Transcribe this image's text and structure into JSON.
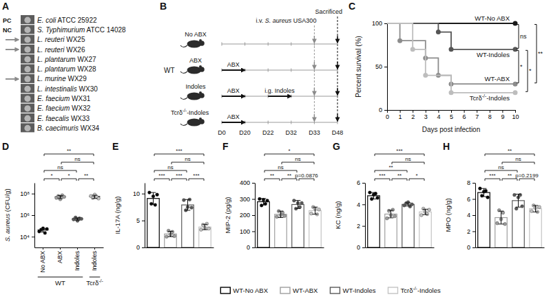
{
  "panel_a": {
    "panel_label": "A",
    "rows": [
      {
        "control": "PC",
        "arrow": false,
        "strain": "E. coli ATCC 25922"
      },
      {
        "control": "NC",
        "arrow": false,
        "strain": "S. Typhimurium ATCC 14028"
      },
      {
        "arrow": true,
        "strain": "L. reuteri WX25"
      },
      {
        "arrow": true,
        "strain": "L. reuteri WX26"
      },
      {
        "arrow": false,
        "strain": "L. plantarum WX27"
      },
      {
        "arrow": false,
        "strain": "L. plantarum WX28"
      },
      {
        "arrow": true,
        "strain": "L. murine WX29"
      },
      {
        "arrow": false,
        "strain": "L. intestinalis WX30"
      },
      {
        "arrow": false,
        "strain": "E. faecium WX31"
      },
      {
        "arrow": false,
        "strain": "E. faecium WX32"
      },
      {
        "arrow": false,
        "strain": "E. faecalis WX33"
      },
      {
        "arrow": false,
        "strain": "B. caecimuris WX34"
      }
    ]
  },
  "panel_b": {
    "panel_label": "B",
    "infection_label": "i.v. S. aureus USA300",
    "infection_day": "D33",
    "end_label": "Sacrificed",
    "end_day": "D48",
    "days": [
      "D0",
      "D20",
      "D22",
      "D32",
      "D33",
      "D48"
    ],
    "rows": [
      {
        "group": "WT",
        "name": "No ABX",
        "bars": []
      },
      {
        "group": "WT",
        "name": "ABX",
        "bars": [
          {
            "label": "ABX",
            "from": "D0",
            "to": "D20"
          }
        ]
      },
      {
        "group": "WT",
        "name": "Indoles",
        "bars": [
          {
            "label": "ABX",
            "from": "D0",
            "to": "D20"
          },
          {
            "label": "i.g. Indoles",
            "from": "D22",
            "to": "D32"
          }
        ]
      },
      {
        "name": "Tcrδ-/--Indoles",
        "bars": [
          {
            "label": "ABX",
            "from": "D0",
            "to": "D20"
          }
        ]
      }
    ]
  },
  "chart_data": [
    {
      "panel_label": "C",
      "type": "line",
      "line_style": "step",
      "marker": "circle",
      "x_label": "Days post infection",
      "y_label": "Percent survival (%)",
      "x": [
        0,
        1,
        2,
        3,
        4,
        5,
        6,
        7,
        8,
        9,
        10
      ],
      "xlim": [
        0,
        10
      ],
      "xticks": [
        0,
        1,
        2,
        3,
        4,
        5,
        6,
        7,
        8,
        9,
        10
      ],
      "ylim": [
        0,
        100
      ],
      "yticks": [
        0,
        50,
        100
      ],
      "series": [
        {
          "name": "WT-No ABX",
          "color": "#1a1a1a",
          "values": [
            100,
            100,
            100,
            100,
            100,
            100,
            100,
            100,
            100,
            100,
            100
          ]
        },
        {
          "name": "WT-Indoles",
          "color": "#555555",
          "values": [
            100,
            100,
            100,
            100,
            90,
            70,
            70,
            70,
            70,
            70,
            70
          ]
        },
        {
          "name": "WT-ABX",
          "color": "#8c8c8c",
          "values": [
            100,
            80,
            80,
            60,
            40,
            30,
            30,
            30,
            30,
            30,
            30
          ]
        },
        {
          "name": "Tcrδ-/--Indoles",
          "color": "#bdbdbd",
          "values": [
            100,
            100,
            70,
            40,
            40,
            20,
            20,
            20,
            20,
            20,
            20
          ]
        }
      ],
      "comparisons": [
        {
          "between": [
            "WT-No ABX",
            "WT-Indoles"
          ],
          "label": "ns"
        },
        {
          "between": [
            "WT-No ABX",
            "WT-ABX"
          ],
          "label": "**"
        },
        {
          "between": [
            "WT-Indoles",
            "WT-ABX"
          ],
          "label": "*"
        },
        {
          "between": [
            "WT-Indoles",
            "Tcrδ-/--Indoles"
          ],
          "label": "*"
        }
      ]
    },
    {
      "panel_label": "D",
      "type": "dot",
      "y_label": "S. aureus (CFU/g)",
      "log": "y",
      "categories": [
        "No ABX",
        "ABX",
        "Indoles",
        "Indoles"
      ],
      "category_groups": [
        "WT",
        "WT",
        "WT",
        "Tcrδ-/-"
      ],
      "ylim": [
        1000,
        1000000000
      ],
      "yticks": [
        {
          "value": 10000,
          "label": "10⁴"
        },
        {
          "value": 1000000,
          "label": "10⁶"
        },
        {
          "value": 100000000,
          "label": "10⁸"
        }
      ],
      "colors": [
        "#000000",
        "#9e9e9e",
        "#5a5a5a",
        "#c4c4c4"
      ],
      "values": [
        42000,
        50000000,
        450000,
        53000000
      ],
      "errors": [
        15000,
        16000000,
        110000,
        18000000
      ],
      "points": [
        [
          30000,
          45000,
          60000,
          22000,
          52000
        ],
        [
          40000000,
          60000000,
          30000000,
          70000000,
          50000000
        ],
        [
          400000,
          600000,
          300000,
          500000,
          450000
        ],
        [
          60000000,
          40000000,
          80000000,
          50000000,
          35000000
        ]
      ],
      "comparisons": [
        {
          "between": [
            "WT-No ABX",
            "WT-ABX"
          ],
          "label": "*"
        },
        {
          "between": [
            "WT-ABX",
            "WT-Indoles"
          ],
          "label": "*"
        },
        {
          "between": [
            "WT-Indoles",
            "Tcrδ-/--Indoles"
          ],
          "label": "**"
        },
        {
          "between": [
            "WT-No ABX",
            "WT-Indoles"
          ],
          "label": "ns"
        },
        {
          "between": [
            "WT-ABX",
            "Tcrδ-/--Indoles"
          ],
          "label": "ns"
        },
        {
          "between": [
            "WT-No ABX",
            "Tcrδ-/--Indoles"
          ],
          "label": "**"
        }
      ]
    },
    {
      "panel_label": "E",
      "type": "bar",
      "y_label": "IL-17A (ng/g)",
      "tick_labels": "y",
      "ylim": [
        0,
        12
      ],
      "yticks": [
        0,
        5,
        10
      ],
      "colors": [
        "#000000",
        "#9e9e9e",
        "#5a5a5a",
        "#c4c4c4"
      ],
      "values": [
        9.1,
        2.5,
        7.9,
        3.8
      ],
      "errors": [
        1.1,
        0.5,
        1.0,
        0.5
      ],
      "points": [
        [
          10.2,
          8.1,
          9.5,
          7.9,
          9.8
        ],
        [
          2.0,
          3.1,
          2.4,
          2.9,
          2.1
        ],
        [
          8.8,
          6.9,
          7.5,
          8.9,
          7.4
        ],
        [
          3.3,
          4.2,
          3.6,
          4.4,
          3.5
        ]
      ],
      "comparisons": [
        {
          "between": [
            "WT-No ABX",
            "WT-ABX"
          ],
          "label": "***"
        },
        {
          "between": [
            "WT-ABX",
            "WT-Indoles"
          ],
          "label": "***"
        },
        {
          "between": [
            "WT-Indoles",
            "Tcrδ-/--Indoles"
          ],
          "label": "***"
        },
        {
          "between": [
            "WT-No ABX",
            "WT-Indoles"
          ],
          "label": "ns"
        },
        {
          "between": [
            "WT-ABX",
            "Tcrδ-/--Indoles"
          ],
          "label": "ns"
        },
        {
          "between": [
            "WT-No ABX",
            "Tcrδ-/--Indoles"
          ],
          "label": "***"
        }
      ]
    },
    {
      "panel_label": "F",
      "type": "bar",
      "y_label": "MIP-2 (pg/g)",
      "tick_labels": "y",
      "ylim": [
        0,
        400
      ],
      "yticks": [
        0,
        100,
        200,
        300,
        400
      ],
      "colors": [
        "#000000",
        "#9e9e9e",
        "#5a5a5a",
        "#c4c4c4"
      ],
      "values": [
        283,
        205,
        266,
        228
      ],
      "errors": [
        20,
        20,
        25,
        22
      ],
      "points": [
        [
          300,
          260,
          295,
          270,
          290
        ],
        [
          190,
          225,
          200,
          215,
          195
        ],
        [
          290,
          240,
          275,
          250,
          275
        ],
        [
          210,
          250,
          240,
          205,
          235
        ]
      ],
      "comparisons": [
        {
          "between": [
            "WT-No ABX",
            "WT-ABX"
          ],
          "label": "**"
        },
        {
          "between": [
            "WT-ABX",
            "WT-Indoles"
          ],
          "label": "**"
        },
        {
          "between": [
            "WT-Indoles",
            "Tcrδ-/--Indoles"
          ],
          "label": "p=0.0876"
        },
        {
          "between": [
            "WT-No ABX",
            "WT-Indoles"
          ],
          "label": "ns"
        },
        {
          "between": [
            "WT-ABX",
            "Tcrδ-/--Indoles"
          ],
          "label": "ns"
        },
        {
          "between": [
            "WT-No ABX",
            "Tcrδ-/--Indoles"
          ],
          "label": "*"
        }
      ]
    },
    {
      "panel_label": "G",
      "type": "bar",
      "y_label": "KC (ng/g)",
      "tick_labels": "y",
      "ylim": [
        0,
        6
      ],
      "yticks": [
        0,
        2,
        4,
        6
      ],
      "colors": [
        "#000000",
        "#9e9e9e",
        "#5a5a5a",
        "#c4c4c4"
      ],
      "values": [
        4.8,
        3.1,
        4.0,
        3.3
      ],
      "errors": [
        0.3,
        0.35,
        0.15,
        0.25
      ],
      "points": [
        [
          5.1,
          4.5,
          4.9,
          5.0,
          4.6
        ],
        [
          2.7,
          3.4,
          3.0,
          3.5,
          2.9
        ],
        [
          3.9,
          4.1,
          4.2,
          3.8,
          4.0
        ],
        [
          3.0,
          3.6,
          3.3,
          3.1,
          3.5
        ]
      ],
      "comparisons": [
        {
          "between": [
            "WT-No ABX",
            "WT-ABX"
          ],
          "label": "***"
        },
        {
          "between": [
            "WT-ABX",
            "WT-Indoles"
          ],
          "label": "**"
        },
        {
          "between": [
            "WT-Indoles",
            "Tcrδ-/--Indoles"
          ],
          "label": "*"
        },
        {
          "between": [
            "WT-No ABX",
            "WT-Indoles"
          ],
          "label": "**"
        },
        {
          "between": [
            "WT-ABX",
            "Tcrδ-/--Indoles"
          ],
          "label": "ns"
        },
        {
          "between": [
            "WT-No ABX",
            "Tcrδ-/--Indoles"
          ],
          "label": "***"
        }
      ]
    },
    {
      "panel_label": "H",
      "type": "bar",
      "y_label": "MPO (ng/g)",
      "tick_labels": "y",
      "ylim": [
        0,
        8
      ],
      "yticks": [
        0,
        2,
        4,
        6,
        8
      ],
      "colors": [
        "#000000",
        "#9e9e9e",
        "#5a5a5a",
        "#c4c4c4"
      ],
      "values": [
        6.8,
        3.7,
        5.8,
        4.8
      ],
      "errors": [
        0.5,
        0.8,
        0.8,
        0.4
      ],
      "points": [
        [
          7.3,
          6.4,
          6.9,
          7.0,
          6.2
        ],
        [
          3.0,
          4.6,
          3.5,
          4.3,
          2.9
        ],
        [
          6.5,
          4.8,
          6.2,
          6.5,
          5.1
        ],
        [
          4.5,
          5.2,
          4.9,
          4.4,
          5.0
        ]
      ],
      "comparisons": [
        {
          "between": [
            "WT-No ABX",
            "WT-ABX"
          ],
          "label": "***"
        },
        {
          "between": [
            "WT-ABX",
            "WT-Indoles"
          ],
          "label": "**"
        },
        {
          "between": [
            "WT-Indoles",
            "Tcrδ-/--Indoles"
          ],
          "label": "p=0.2199"
        },
        {
          "between": [
            "WT-No ABX",
            "WT-Indoles"
          ],
          "label": "ns"
        },
        {
          "between": [
            "WT-ABX",
            "Tcrδ-/--Indoles"
          ],
          "label": "ns"
        },
        {
          "between": [
            "WT-No ABX",
            "Tcrδ-/--Indoles"
          ],
          "label": "**"
        }
      ]
    }
  ],
  "shared_legend": {
    "entries": [
      {
        "name": "WT-No ABX",
        "color": "#000000"
      },
      {
        "name": "WT-ABX",
        "color": "#9e9e9e"
      },
      {
        "name": "WT-Indoles",
        "color": "#5a5a5a"
      },
      {
        "name": "Tcrδ-/--Indoles",
        "color": "#c4c4c4"
      }
    ]
  }
}
